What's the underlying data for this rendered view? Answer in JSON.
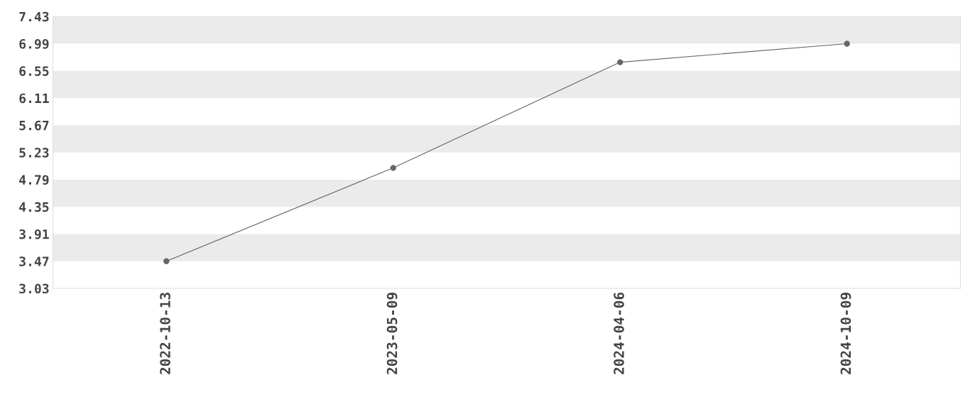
{
  "chart_data": {
    "type": "line",
    "categories": [
      "2022-10-13",
      "2023-05-09",
      "2024-04-06",
      "2024-10-09"
    ],
    "series": [
      {
        "color": "#666666",
        "values": [
          3.47,
          4.98,
          6.69,
          6.99
        ]
      }
    ],
    "ylim": [
      3.03,
      7.43
    ],
    "yticks": [
      3.03,
      3.47,
      3.91,
      4.35,
      4.79,
      5.23,
      5.67,
      6.11,
      6.55,
      6.99,
      7.43
    ],
    "bands": [
      {
        "axis": "y",
        "from": 3.47,
        "to": 3.91,
        "color": "#ebebeb"
      },
      {
        "axis": "y",
        "from": 4.35,
        "to": 4.79,
        "color": "#ebebeb"
      },
      {
        "axis": "y",
        "from": 5.23,
        "to": 5.67,
        "color": "#ebebeb"
      },
      {
        "axis": "y",
        "from": 6.11,
        "to": 6.55,
        "color": "#ebebeb"
      },
      {
        "axis": "y",
        "from": 6.99,
        "to": 7.43,
        "color": "#ebebeb"
      }
    ],
    "marker": "circle",
    "line_style": "solid"
  }
}
